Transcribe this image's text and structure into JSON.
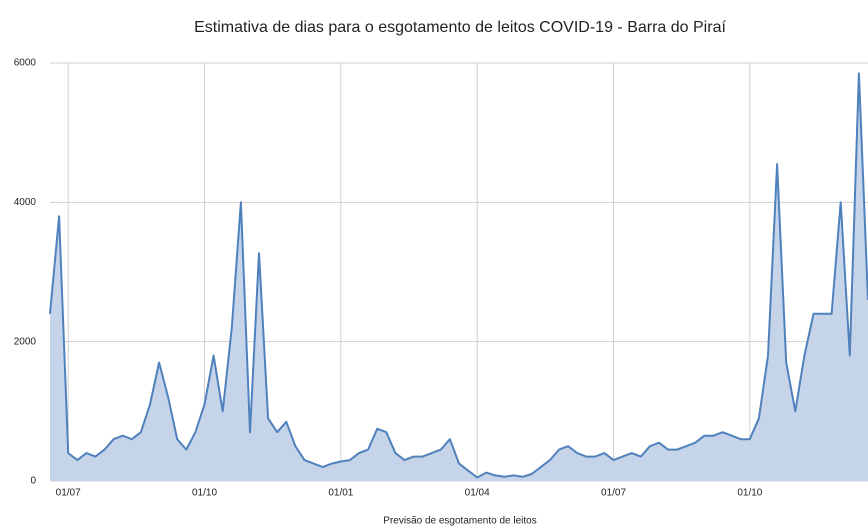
{
  "chart_data": {
    "type": "area",
    "title": "Estimativa de dias para o esgotamento de leitos COVID-19 - Barra do Piraí",
    "x_label": "Previsão de esgotamento de leitos",
    "categories": [
      null,
      null,
      "01/07",
      null,
      null,
      null,
      null,
      null,
      null,
      null,
      null,
      null,
      null,
      null,
      null,
      null,
      null,
      "01/10",
      null,
      null,
      null,
      null,
      null,
      null,
      null,
      null,
      null,
      null,
      null,
      null,
      null,
      null,
      "01/01",
      null,
      null,
      null,
      null,
      null,
      null,
      null,
      null,
      null,
      null,
      null,
      null,
      null,
      null,
      "01/04",
      null,
      null,
      null,
      null,
      null,
      null,
      null,
      null,
      null,
      null,
      null,
      null,
      null,
      null,
      "01/07",
      null,
      null,
      null,
      null,
      null,
      null,
      null,
      null,
      null,
      null,
      null,
      null,
      null,
      null,
      "01/10",
      null,
      null,
      null,
      null,
      null,
      null,
      null,
      null,
      null,
      null,
      null,
      null,
      null
    ],
    "values": [
      2400,
      3800,
      400,
      300,
      400,
      350,
      450,
      600,
      650,
      600,
      700,
      1100,
      1700,
      1200,
      600,
      450,
      700,
      1100,
      1800,
      1000,
      2200,
      4000,
      700,
      3270,
      900,
      700,
      850,
      500,
      300,
      250,
      200,
      250,
      280,
      300,
      400,
      450,
      750,
      700,
      400,
      300,
      350,
      350,
      400,
      450,
      600,
      250,
      150,
      50,
      120,
      80,
      60,
      80,
      60,
      100,
      200,
      300,
      450,
      500,
      400,
      350,
      350,
      400,
      300,
      350,
      400,
      350,
      500,
      550,
      450,
      450,
      500,
      550,
      650,
      650,
      700,
      650,
      600,
      600,
      900,
      1800,
      4550,
      1700,
      1000,
      1800,
      2400,
      2400,
      2400,
      4000,
      1800,
      5850,
      2600
    ],
    "color": "#4f81bd",
    "fill": "#c6d4ea",
    "ylim": [
      0,
      6000
    ],
    "yticks": [
      0,
      2000,
      4000,
      6000
    ],
    "grid": true
  }
}
